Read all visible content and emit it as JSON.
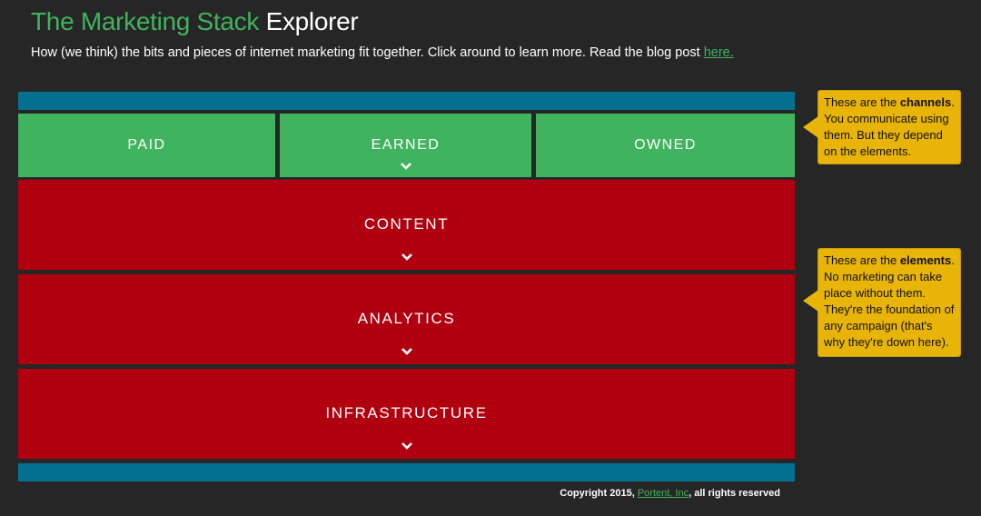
{
  "header": {
    "title_green": "The Marketing Stack",
    "title_white": "Explorer",
    "subtitle": "How (we think) the bits and pieces of internet marketing fit together. Click around to learn more. Read the blog post",
    "link_text": "here."
  },
  "channels": {
    "paid": "PAID",
    "earned": "EARNED",
    "owned": "OWNED"
  },
  "elements": {
    "content": "CONTENT",
    "analytics": "ANALYTICS",
    "infrastructure": "INFRASTRUCTURE"
  },
  "notes": {
    "channels_pre": "These are the ",
    "channels_bold": "channels",
    "channels_post": ". You communicate using them. But they depend on the elements.",
    "elements_pre": "These are the ",
    "elements_bold": "elements",
    "elements_post": ". No marketing can take place without them. They're the foundation of any campaign (that's why they're down here)."
  },
  "footer": {
    "prefix": "Copyright 2015,",
    "link": "Portent, Inc",
    "suffix": ", all rights reserved"
  },
  "colors": {
    "green": "#40b35e",
    "red": "#b00010",
    "blue": "#03708f",
    "note": "#e8b408",
    "background": "#262626"
  },
  "icons": {
    "expand": "chevron-down-icon"
  }
}
